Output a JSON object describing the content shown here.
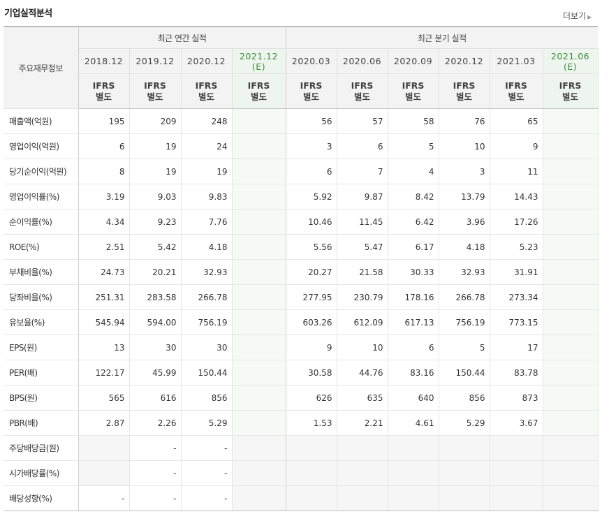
{
  "section_title": "기업실적분석",
  "more_label": "더보기",
  "header": {
    "rowhead_label": "주요재무정보",
    "annual_group": "최근 연간 실적",
    "quarter_group": "최근 분기 실적",
    "periods": [
      {
        "label": "2018.12",
        "estimate": "",
        "type_line1": "IFRS",
        "type_line2": "별도"
      },
      {
        "label": "2019.12",
        "estimate": "",
        "type_line1": "IFRS",
        "type_line2": "별도"
      },
      {
        "label": "2020.12",
        "estimate": "",
        "type_line1": "IFRS",
        "type_line2": "별도"
      },
      {
        "label": "2021.12",
        "estimate": "(E)",
        "type_line1": "IFRS",
        "type_line2": "별도"
      },
      {
        "label": "2020.03",
        "estimate": "",
        "type_line1": "IFRS",
        "type_line2": "별도"
      },
      {
        "label": "2020.06",
        "estimate": "",
        "type_line1": "IFRS",
        "type_line2": "별도"
      },
      {
        "label": "2020.09",
        "estimate": "",
        "type_line1": "IFRS",
        "type_line2": "별도"
      },
      {
        "label": "2020.12",
        "estimate": "",
        "type_line1": "IFRS",
        "type_line2": "별도"
      },
      {
        "label": "2021.03",
        "estimate": "",
        "type_line1": "IFRS",
        "type_line2": "별도"
      },
      {
        "label": "2021.06",
        "estimate": "(E)",
        "type_line1": "IFRS",
        "type_line2": "별도"
      }
    ]
  },
  "rows": [
    {
      "label": "매출액(억원)",
      "values": [
        "195",
        "209",
        "248",
        "",
        "56",
        "57",
        "58",
        "76",
        "65",
        ""
      ]
    },
    {
      "label": "영업이익(억원)",
      "values": [
        "6",
        "19",
        "24",
        "",
        "3",
        "6",
        "5",
        "10",
        "9",
        ""
      ]
    },
    {
      "label": "당기순이익(억원)",
      "values": [
        "8",
        "19",
        "19",
        "",
        "6",
        "7",
        "4",
        "3",
        "11",
        ""
      ]
    },
    {
      "label": "영업이익률(%)",
      "values": [
        "3.19",
        "9.03",
        "9.83",
        "",
        "5.92",
        "9.87",
        "8.42",
        "13.79",
        "14.43",
        ""
      ]
    },
    {
      "label": "순이익률(%)",
      "values": [
        "4.34",
        "9.23",
        "7.76",
        "",
        "10.46",
        "11.45",
        "6.42",
        "3.96",
        "17.26",
        ""
      ]
    },
    {
      "label": "ROE(%)",
      "values": [
        "2.51",
        "5.42",
        "4.18",
        "",
        "5.56",
        "5.47",
        "6.17",
        "4.18",
        "5.23",
        ""
      ]
    },
    {
      "label": "부채비율(%)",
      "values": [
        "24.73",
        "20.21",
        "32.93",
        "",
        "20.27",
        "21.58",
        "30.33",
        "32.93",
        "31.91",
        ""
      ]
    },
    {
      "label": "당좌비율(%)",
      "values": [
        "251.31",
        "283.58",
        "266.78",
        "",
        "277.95",
        "230.79",
        "178.16",
        "266.78",
        "273.34",
        ""
      ]
    },
    {
      "label": "유보율(%)",
      "values": [
        "545.94",
        "594.00",
        "756.19",
        "",
        "603.26",
        "612.09",
        "617.13",
        "756.19",
        "773.15",
        ""
      ]
    },
    {
      "label": "EPS(원)",
      "values": [
        "13",
        "30",
        "30",
        "",
        "9",
        "10",
        "6",
        "5",
        "17",
        ""
      ]
    },
    {
      "label": "PER(배)",
      "values": [
        "122.17",
        "45.99",
        "150.44",
        "",
        "30.58",
        "44.76",
        "83.16",
        "150.44",
        "83.78",
        ""
      ]
    },
    {
      "label": "BPS(원)",
      "values": [
        "565",
        "616",
        "856",
        "",
        "626",
        "635",
        "640",
        "856",
        "873",
        ""
      ]
    },
    {
      "label": "PBR(배)",
      "values": [
        "2.87",
        "2.26",
        "5.29",
        "",
        "1.53",
        "2.21",
        "4.61",
        "5.29",
        "3.67",
        ""
      ]
    },
    {
      "label": "주당배당금(원)",
      "values": [
        "",
        "-",
        "-",
        "",
        "",
        "",
        "",
        "",
        "",
        ""
      ]
    },
    {
      "label": "시가배당률(%)",
      "values": [
        "",
        "-",
        "-",
        "",
        "",
        "",
        "",
        "",
        "",
        ""
      ]
    },
    {
      "label": "배당성향(%)",
      "values": [
        "-",
        "-",
        "-",
        "",
        "",
        "",
        "",
        "",
        "",
        ""
      ]
    }
  ],
  "colors": {
    "ifrs_orange": "#e8692c",
    "estimate_green": "#3a8b3a",
    "header_bg": "#f3f3f3"
  }
}
